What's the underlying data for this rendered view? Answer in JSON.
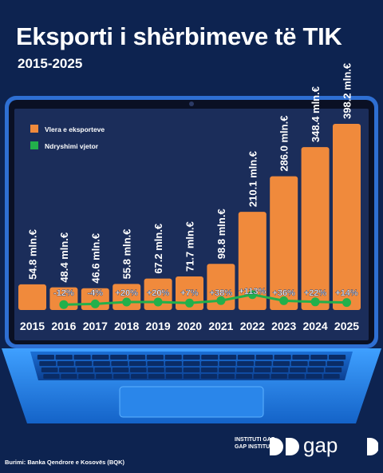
{
  "header": {
    "title": "Eksporti i shërbimeve të TIK",
    "subtitle": "2015-2025"
  },
  "footer": {
    "source": "Burimi: Banka Qendrore e Kosovës (BQK)",
    "brand_line_1": "INSTITUTI GAP",
    "brand_line_2": "GAP INSTITUTE",
    "brand_logo_text": "gap"
  },
  "colors": {
    "background": "#0d2350",
    "bars": "#f08a3c",
    "change_line": "#22b04b",
    "screen": "#1b2d5a"
  },
  "chart_data": {
    "type": "bar",
    "categories": [
      "2015",
      "2016",
      "2017",
      "2018",
      "2019",
      "2020",
      "2021",
      "2022",
      "2023",
      "2024",
      "2025"
    ],
    "series": [
      {
        "name": "Vlera e eksporteve",
        "values": [
          54.8,
          48.4,
          46.6,
          55.8,
          67.2,
          71.7,
          98.8,
          210.1,
          286.0,
          348.4,
          398.2
        ],
        "labels": [
          "54.8 mln.€",
          "48.4 mln.€",
          "46.6 mln.€",
          "55.8 mln.€",
          "67.2 mln.€",
          "71.7 mln.€",
          "98.8 mln.€",
          "210.1 mln.€",
          "286.0 mln.€",
          "348.4 mln.€",
          "398.2 mln.€"
        ]
      },
      {
        "name": "Ndryshimi vjetor",
        "values": [
          null,
          -12,
          -4,
          20,
          20,
          7,
          38,
          113,
          36,
          22,
          14
        ],
        "labels": [
          "",
          "-12%",
          "-4%",
          "+20%",
          "+20%",
          "+7%",
          "+38%",
          "+113%",
          "+36%",
          "+22%",
          "+14%"
        ]
      }
    ],
    "xlabel": "",
    "ylabel": "",
    "legend": "top-left"
  }
}
